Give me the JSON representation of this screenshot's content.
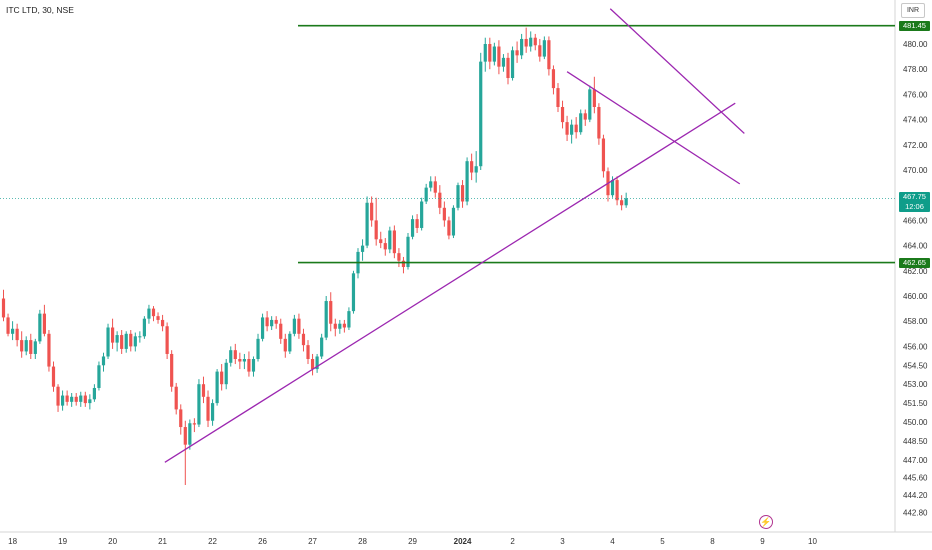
{
  "header": {
    "title": "ITC LTD, 30, NSE",
    "currency": "INR"
  },
  "colors": {
    "up": "#26a69a",
    "down": "#ef5350",
    "hline": "#1b7a1b",
    "trendline": "#9c27b0",
    "axis_text": "#333333",
    "last_price_line": "#26a69a"
  },
  "icons": {
    "replay": "lightning-bolt-icon"
  },
  "chart_data": {
    "type": "candlestick",
    "title": "ITC LTD, 30, NSE",
    "currency": "INR",
    "y_axis": {
      "position": "right",
      "ylim": [
        442.0,
        483.5
      ],
      "ticks": [
        480.0,
        478.0,
        476.0,
        474.0,
        472.0,
        470.0,
        466.0,
        464.0,
        462.0,
        460.0,
        458.0,
        456.0,
        454.5,
        453.0,
        451.5,
        450.0,
        448.5,
        447.0,
        445.6,
        444.2,
        442.8
      ],
      "tick_labels": [
        "480.00",
        "478.00",
        "476.00",
        "474.00",
        "472.00",
        "470.00",
        "466.00",
        "464.00",
        "462.00",
        "460.00",
        "458.00",
        "456.00",
        "454.50",
        "453.00",
        "451.50",
        "450.00",
        "448.50",
        "447.00",
        "445.60",
        "444.20",
        "442.80"
      ]
    },
    "x_axis": {
      "ticks": [
        {
          "label": "18",
          "pos": 2
        },
        {
          "label": "19",
          "pos": 13
        },
        {
          "label": "20",
          "pos": 24
        },
        {
          "label": "21",
          "pos": 35
        },
        {
          "label": "22",
          "pos": 46
        },
        {
          "label": "26",
          "pos": 57
        },
        {
          "label": "27",
          "pos": 68
        },
        {
          "label": "28",
          "pos": 79
        },
        {
          "label": "29",
          "pos": 90
        },
        {
          "label": "2024",
          "pos": 101,
          "bold": true
        },
        {
          "label": "2",
          "pos": 112
        },
        {
          "label": "3",
          "pos": 123
        },
        {
          "label": "4",
          "pos": 134
        },
        {
          "label": "5",
          "pos": 145
        },
        {
          "label": "8",
          "pos": 156
        },
        {
          "label": "9",
          "pos": 167
        },
        {
          "label": "10",
          "pos": 178
        }
      ]
    },
    "candles_ohlc": [
      [
        459.8,
        460.5,
        458.0,
        458.3
      ],
      [
        458.3,
        458.6,
        456.8,
        457.0
      ],
      [
        457.0,
        458.0,
        456.5,
        457.4
      ],
      [
        457.4,
        457.8,
        456.0,
        456.5
      ],
      [
        456.5,
        457.2,
        455.1,
        455.6
      ],
      [
        455.6,
        456.8,
        455.3,
        456.5
      ],
      [
        456.5,
        457.0,
        455.0,
        455.4
      ],
      [
        455.4,
        456.6,
        455.0,
        456.4
      ],
      [
        456.4,
        458.9,
        456.2,
        458.6
      ],
      [
        458.6,
        459.3,
        456.8,
        457.0
      ],
      [
        457.0,
        457.3,
        454.0,
        454.4
      ],
      [
        454.4,
        454.8,
        452.4,
        452.8
      ],
      [
        452.8,
        453.0,
        450.8,
        451.3
      ],
      [
        451.3,
        452.5,
        450.9,
        452.1
      ],
      [
        452.1,
        452.5,
        451.3,
        451.6
      ],
      [
        451.6,
        452.3,
        451.2,
        452.0
      ],
      [
        452.0,
        452.3,
        451.3,
        451.6
      ],
      [
        451.6,
        452.4,
        451.2,
        452.1
      ],
      [
        452.1,
        452.4,
        451.2,
        451.5
      ],
      [
        451.5,
        452.2,
        451.0,
        451.8
      ],
      [
        451.8,
        453.0,
        451.6,
        452.7
      ],
      [
        452.7,
        454.8,
        452.5,
        454.5
      ],
      [
        454.5,
        455.5,
        454.0,
        455.2
      ],
      [
        455.2,
        457.8,
        455.0,
        457.5
      ],
      [
        457.5,
        458.2,
        455.8,
        456.3
      ],
      [
        456.3,
        457.2,
        455.6,
        456.9
      ],
      [
        456.9,
        457.3,
        455.4,
        455.8
      ],
      [
        455.8,
        457.2,
        455.5,
        457.0
      ],
      [
        457.0,
        457.3,
        455.6,
        456.0
      ],
      [
        456.0,
        457.1,
        455.6,
        456.8
      ],
      [
        456.8,
        457.2,
        456.3,
        456.8
      ],
      [
        456.8,
        458.4,
        456.6,
        458.2
      ],
      [
        458.2,
        459.3,
        457.8,
        459.0
      ],
      [
        459.0,
        459.2,
        458.0,
        458.4
      ],
      [
        458.4,
        458.7,
        457.8,
        458.1
      ],
      [
        458.1,
        458.5,
        457.2,
        457.6
      ],
      [
        457.6,
        457.9,
        455.0,
        455.4
      ],
      [
        455.4,
        455.7,
        452.4,
        452.8
      ],
      [
        452.8,
        453.1,
        450.6,
        451.0
      ],
      [
        451.0,
        451.4,
        449.0,
        449.6
      ],
      [
        449.6,
        450.1,
        445.0,
        448.2
      ],
      [
        448.2,
        450.2,
        447.8,
        449.9
      ],
      [
        449.9,
        450.3,
        449.2,
        449.8
      ],
      [
        449.8,
        453.4,
        449.6,
        453.0
      ],
      [
        453.0,
        453.6,
        451.5,
        452.0
      ],
      [
        452.0,
        452.5,
        449.6,
        450.1
      ],
      [
        450.1,
        451.8,
        449.7,
        451.5
      ],
      [
        451.5,
        454.2,
        451.3,
        454.0
      ],
      [
        454.0,
        454.6,
        452.5,
        453.0
      ],
      [
        453.0,
        455.0,
        452.6,
        454.7
      ],
      [
        454.7,
        456.0,
        454.4,
        455.7
      ],
      [
        455.7,
        456.2,
        454.6,
        455.0
      ],
      [
        455.0,
        455.5,
        454.2,
        454.8
      ],
      [
        454.8,
        455.4,
        454.2,
        455.0
      ],
      [
        455.0,
        455.6,
        453.6,
        454.0
      ],
      [
        454.0,
        455.2,
        453.6,
        455.0
      ],
      [
        455.0,
        457.0,
        454.8,
        456.6
      ],
      [
        456.6,
        458.6,
        456.4,
        458.3
      ],
      [
        458.3,
        458.8,
        457.2,
        457.6
      ],
      [
        457.6,
        458.4,
        457.3,
        458.1
      ],
      [
        458.1,
        458.4,
        457.4,
        457.8
      ],
      [
        457.8,
        458.2,
        456.2,
        456.6
      ],
      [
        456.6,
        457.0,
        455.1,
        455.6
      ],
      [
        455.6,
        457.2,
        455.4,
        457.0
      ],
      [
        457.0,
        458.5,
        456.8,
        458.2
      ],
      [
        458.2,
        458.6,
        456.6,
        457.0
      ],
      [
        457.0,
        457.4,
        455.6,
        456.1
      ],
      [
        456.1,
        456.5,
        454.6,
        455.0
      ],
      [
        455.0,
        455.4,
        453.7,
        454.2
      ],
      [
        454.2,
        455.4,
        453.9,
        455.2
      ],
      [
        455.2,
        457.0,
        455.0,
        456.7
      ],
      [
        456.7,
        460.0,
        456.5,
        459.6
      ],
      [
        459.6,
        460.3,
        457.2,
        457.8
      ],
      [
        457.8,
        458.2,
        456.8,
        457.4
      ],
      [
        457.4,
        458.1,
        457.0,
        457.8
      ],
      [
        457.8,
        458.1,
        457.1,
        457.5
      ],
      [
        457.5,
        459.1,
        457.3,
        458.8
      ],
      [
        458.8,
        462.0,
        458.6,
        461.8
      ],
      [
        461.8,
        463.8,
        461.4,
        463.5
      ],
      [
        463.5,
        464.5,
        462.8,
        464.0
      ],
      [
        464.0,
        467.9,
        463.8,
        467.4
      ],
      [
        467.4,
        467.9,
        465.5,
        466.0
      ],
      [
        466.0,
        467.8,
        464.0,
        464.5
      ],
      [
        464.5,
        465.1,
        463.8,
        464.2
      ],
      [
        464.2,
        464.6,
        463.2,
        463.7
      ],
      [
        463.7,
        465.5,
        463.4,
        465.2
      ],
      [
        465.2,
        465.6,
        463.0,
        463.4
      ],
      [
        463.4,
        463.8,
        462.3,
        462.8
      ],
      [
        462.8,
        463.1,
        461.8,
        462.3
      ],
      [
        462.3,
        465.0,
        462.1,
        464.7
      ],
      [
        464.7,
        466.4,
        464.5,
        466.1
      ],
      [
        466.1,
        466.5,
        465.0,
        465.4
      ],
      [
        465.4,
        467.8,
        465.2,
        467.5
      ],
      [
        467.5,
        468.9,
        467.3,
        468.6
      ],
      [
        468.6,
        469.5,
        468.3,
        469.1
      ],
      [
        469.1,
        469.5,
        467.8,
        468.2
      ],
      [
        468.2,
        468.8,
        466.5,
        467.0
      ],
      [
        467.0,
        467.5,
        465.5,
        466.0
      ],
      [
        466.0,
        466.3,
        464.5,
        464.8
      ],
      [
        464.8,
        467.2,
        464.6,
        467.0
      ],
      [
        467.0,
        469.0,
        466.8,
        468.8
      ],
      [
        468.8,
        469.2,
        467.0,
        467.5
      ],
      [
        467.5,
        471.0,
        467.2,
        470.7
      ],
      [
        470.7,
        471.3,
        469.2,
        469.8
      ],
      [
        469.8,
        471.5,
        469.0,
        470.3
      ],
      [
        470.3,
        479.3,
        470.0,
        478.6
      ],
      [
        478.6,
        480.5,
        477.8,
        480.0
      ],
      [
        480.0,
        480.5,
        478.0,
        478.6
      ],
      [
        478.6,
        480.1,
        478.3,
        479.8
      ],
      [
        479.8,
        480.3,
        477.6,
        478.2
      ],
      [
        478.2,
        479.2,
        477.8,
        478.9
      ],
      [
        478.9,
        479.3,
        476.8,
        477.3
      ],
      [
        477.3,
        479.8,
        477.1,
        479.5
      ],
      [
        479.5,
        480.2,
        478.5,
        479.1
      ],
      [
        479.1,
        480.8,
        478.8,
        480.4
      ],
      [
        480.4,
        481.3,
        479.3,
        479.8
      ],
      [
        479.8,
        481.0,
        479.4,
        480.5
      ],
      [
        480.5,
        480.8,
        479.5,
        479.9
      ],
      [
        479.9,
        480.4,
        478.6,
        479.0
      ],
      [
        479.0,
        480.6,
        478.8,
        480.3
      ],
      [
        480.3,
        480.6,
        477.5,
        478.0
      ],
      [
        478.0,
        478.3,
        476.0,
        476.5
      ],
      [
        476.5,
        476.9,
        474.6,
        475.0
      ],
      [
        475.0,
        475.5,
        473.3,
        473.8
      ],
      [
        473.8,
        474.3,
        472.3,
        472.8
      ],
      [
        472.8,
        474.0,
        472.1,
        473.6
      ],
      [
        473.6,
        474.2,
        472.5,
        473.0
      ],
      [
        473.0,
        474.8,
        472.8,
        474.5
      ],
      [
        474.5,
        474.8,
        473.5,
        474.0
      ],
      [
        474.0,
        476.7,
        473.8,
        476.4
      ],
      [
        476.4,
        477.4,
        474.5,
        475.0
      ],
      [
        475.0,
        475.3,
        472.0,
        472.5
      ],
      [
        472.5,
        472.8,
        469.4,
        469.9
      ],
      [
        469.9,
        470.2,
        467.5,
        468.0
      ],
      [
        468.0,
        469.5,
        467.8,
        469.2
      ],
      [
        469.2,
        469.5,
        467.2,
        467.6
      ],
      [
        467.6,
        468.0,
        466.8,
        467.2
      ],
      [
        467.2,
        468.2,
        467.0,
        467.75
      ]
    ],
    "horizontal_lines": [
      {
        "name": "resistance",
        "value": 481.45,
        "label": "481.45"
      },
      {
        "name": "support",
        "value": 462.65,
        "label": "462.65"
      }
    ],
    "trendlines": [
      {
        "name": "rising-trendline",
        "from": [
          35.5,
          446.8
        ],
        "to": [
          161,
          475.3
        ]
      },
      {
        "name": "channel-upper",
        "from": [
          133.5,
          482.8
        ],
        "to": [
          163,
          472.9
        ]
      },
      {
        "name": "channel-lower",
        "from": [
          124,
          477.8
        ],
        "to": [
          162,
          468.9
        ]
      }
    ],
    "last_price": {
      "value": 467.75,
      "label": "467.75",
      "countdown": "12:06"
    }
  }
}
